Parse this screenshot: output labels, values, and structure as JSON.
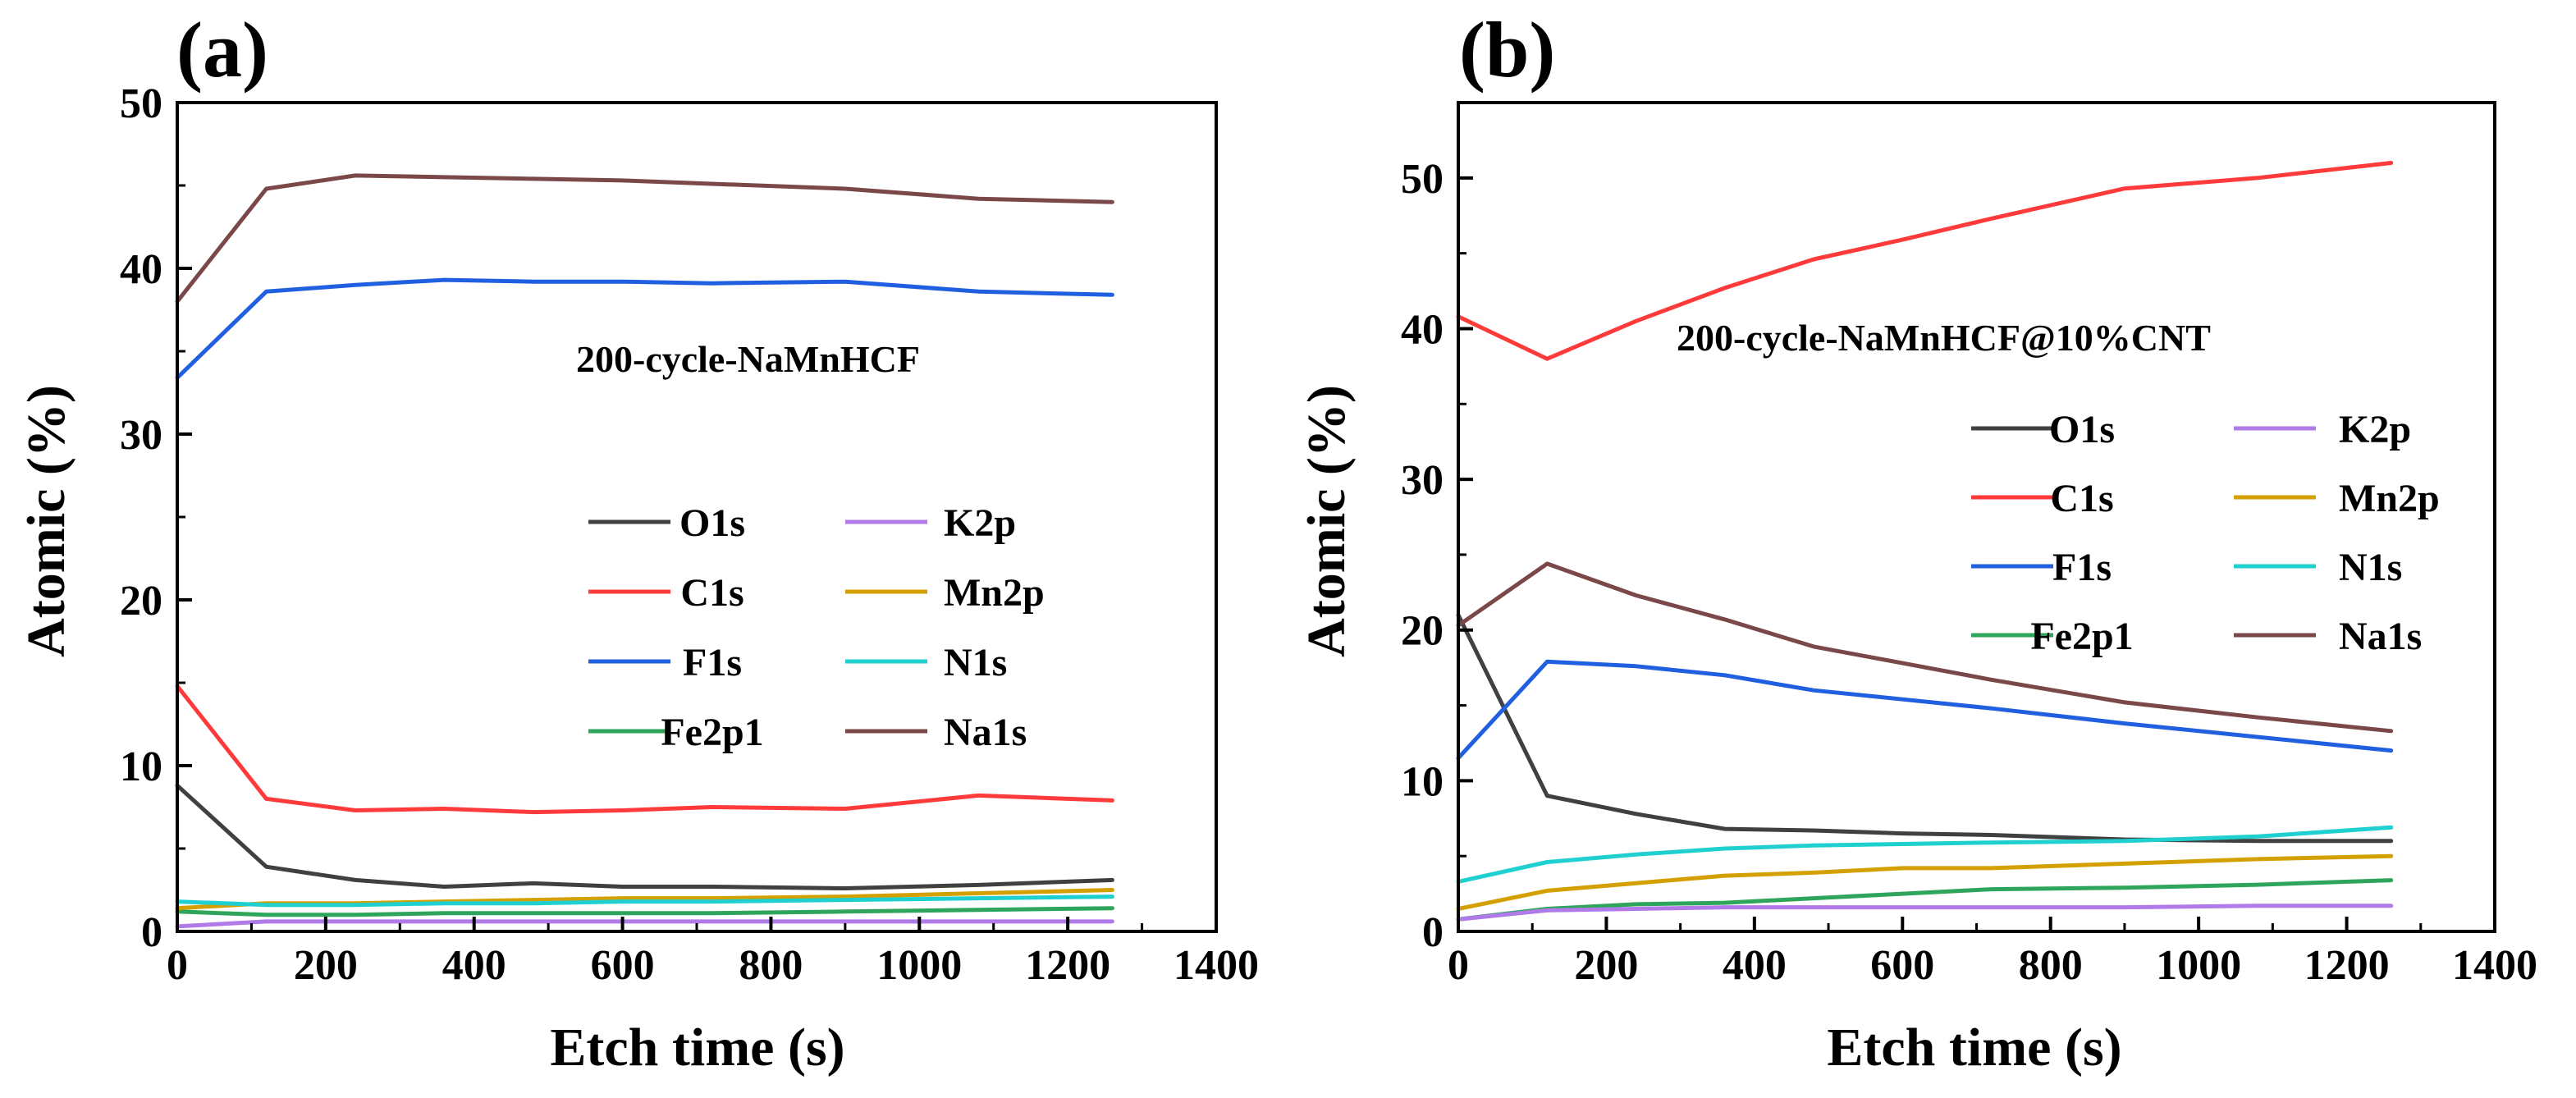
{
  "chart_data": [
    {
      "type": "line",
      "panel_label": "(a)",
      "annotation": "200-cycle-NaMnHCF",
      "xlabel": "Etch time (s)",
      "ylabel": "Atomic (%)",
      "xlim": [
        0,
        1400
      ],
      "ylim": [
        0,
        50
      ],
      "x_ticks": [
        0,
        200,
        400,
        600,
        800,
        1000,
        1200,
        1400
      ],
      "y_ticks": [
        0,
        10,
        20,
        30,
        40,
        50
      ],
      "grid": false,
      "legend": "center-right, two columns",
      "x": [
        0,
        120,
        240,
        360,
        480,
        600,
        720,
        900,
        1080,
        1260
      ],
      "series": [
        {
          "name": "O1s",
          "color": "#404040",
          "values": [
            8.8,
            3.9,
            3.1,
            2.7,
            2.9,
            2.7,
            2.7,
            2.6,
            2.8,
            3.1
          ]
        },
        {
          "name": "C1s",
          "color": "#ff3a3a",
          "values": [
            14.8,
            8.0,
            7.3,
            7.4,
            7.2,
            7.3,
            7.5,
            7.4,
            8.2,
            7.9
          ]
        },
        {
          "name": "F1s",
          "color": "#2060e0",
          "values": [
            33.4,
            38.6,
            39.0,
            39.3,
            39.2,
            39.2,
            39.1,
            39.2,
            38.6,
            38.4
          ]
        },
        {
          "name": "Fe2p1",
          "color": "#2ea55a",
          "values": [
            1.2,
            1.0,
            1.0,
            1.1,
            1.1,
            1.1,
            1.1,
            1.2,
            1.3,
            1.4
          ]
        },
        {
          "name": "K2p",
          "color": "#b07ae8",
          "values": [
            0.3,
            0.6,
            0.6,
            0.6,
            0.6,
            0.6,
            0.6,
            0.6,
            0.6,
            0.6
          ]
        },
        {
          "name": "Mn2p",
          "color": "#d4a000",
          "values": [
            1.4,
            1.7,
            1.7,
            1.8,
            1.9,
            2.0,
            2.0,
            2.1,
            2.3,
            2.5
          ]
        },
        {
          "name": "N1s",
          "color": "#20d0d0",
          "values": [
            1.8,
            1.6,
            1.6,
            1.7,
            1.7,
            1.8,
            1.8,
            1.9,
            2.0,
            2.1
          ]
        },
        {
          "name": "Na1s",
          "color": "#7a4848",
          "values": [
            38.0,
            44.8,
            45.6,
            45.5,
            45.4,
            45.3,
            45.1,
            44.8,
            44.2,
            44.0
          ]
        }
      ]
    },
    {
      "type": "line",
      "panel_label": "(b)",
      "annotation": "200-cycle-NaMnHCF@10%CNT",
      "xlabel": "Etch time (s)",
      "ylabel": "Atomic (%)",
      "xlim": [
        0,
        1400
      ],
      "ylim": [
        0,
        55
      ],
      "x_ticks": [
        0,
        200,
        400,
        600,
        800,
        1000,
        1200,
        1400
      ],
      "y_ticks": [
        0,
        10,
        20,
        30,
        40,
        50
      ],
      "grid": false,
      "legend": "center-right, two columns",
      "x": [
        0,
        120,
        240,
        360,
        480,
        600,
        720,
        900,
        1080,
        1260
      ],
      "series": [
        {
          "name": "O1s",
          "color": "#404040",
          "values": [
            21.0,
            9.0,
            7.8,
            6.8,
            6.7,
            6.5,
            6.4,
            6.1,
            6.0,
            6.0
          ]
        },
        {
          "name": "C1s",
          "color": "#ff3a3a",
          "values": [
            40.8,
            38.0,
            40.5,
            42.7,
            44.6,
            45.9,
            47.3,
            49.3,
            50.0,
            51.0
          ]
        },
        {
          "name": "F1s",
          "color": "#2060e0",
          "values": [
            11.5,
            17.9,
            17.6,
            17.0,
            16.0,
            15.4,
            14.8,
            13.8,
            12.9,
            12.0
          ]
        },
        {
          "name": "Fe2p1",
          "color": "#2ea55a",
          "values": [
            0.8,
            1.5,
            1.8,
            1.9,
            2.2,
            2.5,
            2.8,
            2.9,
            3.1,
            3.4
          ]
        },
        {
          "name": "K2p",
          "color": "#b07ae8",
          "values": [
            0.8,
            1.4,
            1.5,
            1.6,
            1.6,
            1.6,
            1.6,
            1.6,
            1.7,
            1.7
          ]
        },
        {
          "name": "Mn2p",
          "color": "#d4a000",
          "values": [
            1.5,
            2.7,
            3.2,
            3.7,
            3.9,
            4.2,
            4.2,
            4.5,
            4.8,
            5.0
          ]
        },
        {
          "name": "N1s",
          "color": "#20d0d0",
          "values": [
            3.3,
            4.6,
            5.1,
            5.5,
            5.7,
            5.8,
            5.9,
            6.0,
            6.3,
            6.9
          ]
        },
        {
          "name": "Na1s",
          "color": "#7a4848",
          "values": [
            20.3,
            24.4,
            22.3,
            20.7,
            18.9,
            17.8,
            16.7,
            15.2,
            14.2,
            13.3
          ]
        }
      ]
    }
  ]
}
